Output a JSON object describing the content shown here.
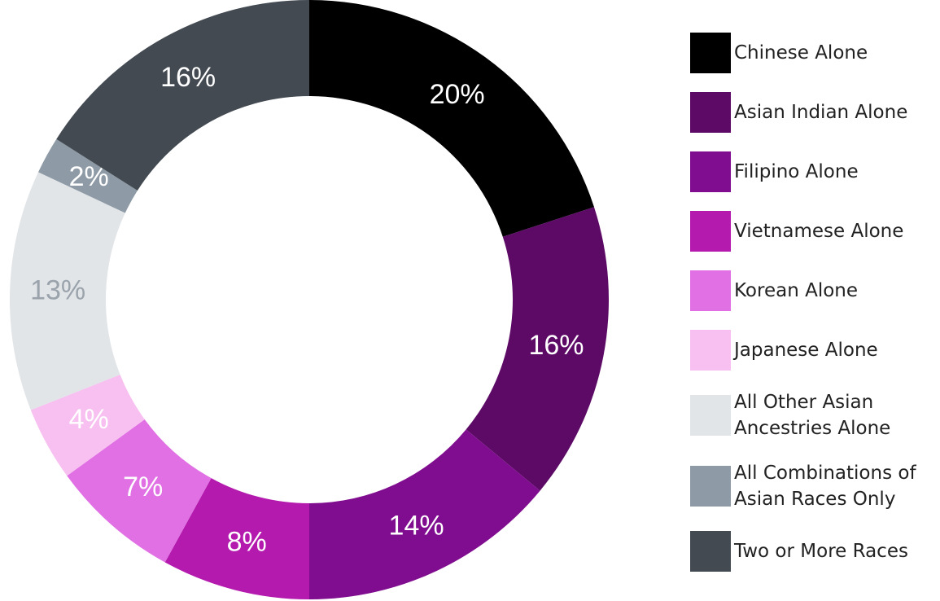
{
  "chart_data": {
    "type": "donut",
    "categories": [
      "Chinese Alone",
      "Asian Indian Alone",
      "Filipino Alone",
      "Vietnamese Alone",
      "Korean Alone",
      "Japanese Alone",
      "All Other Asian Ancestries Alone",
      "All Combinations of Asian Races Only",
      "Two or More Races"
    ],
    "values": [
      20,
      16,
      14,
      8,
      7,
      4,
      13,
      2,
      16
    ],
    "value_labels": [
      "20%",
      "16%",
      "14%",
      "8%",
      "7%",
      "4%",
      "13%",
      "2%",
      "16%"
    ],
    "colors": [
      "#000000",
      "#5c0a66",
      "#800d8f",
      "#b31aad",
      "#e070e3",
      "#f7c0f0",
      "#e2e5e8",
      "#8e9ba6",
      "#434a52"
    ],
    "legend": "right"
  }
}
